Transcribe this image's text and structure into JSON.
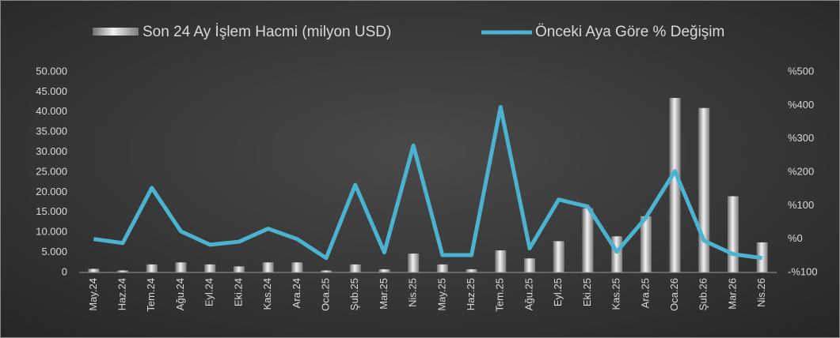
{
  "chart_data": {
    "type": "combo",
    "categories": [
      "May.24",
      "Haz.24",
      "Tem.24",
      "Ağu.24",
      "Eyl.24",
      "Eki.24",
      "Kas.24",
      "Ara.24",
      "Oca.25",
      "Şub.25",
      "Mar.25",
      "Nis.25",
      "May.25",
      "Haz.25",
      "Tem.25",
      "Ağu.25",
      "Eyl.25",
      "Eki.25",
      "Kas.25",
      "Ara.25",
      "Oca.26",
      "Şub.26",
      "Mar.26",
      "Nis.26"
    ],
    "series": [
      {
        "name": "Son 24 Ay İşlem Hacmi (milyon USD)",
        "type": "bar",
        "color": "#c8c8c8",
        "values": [
          900,
          500,
          2000,
          2500,
          2000,
          1500,
          2500,
          2500,
          500,
          2000,
          800,
          4700,
          2000,
          800,
          5500,
          3500,
          7800,
          16000,
          9000,
          14000,
          43500,
          41000,
          19000,
          7500
        ]
      },
      {
        "name": "Önceki Aya Göre % Değişim",
        "type": "line",
        "axis": "y2",
        "color": "#4bb3cf",
        "values": [
          0,
          -12,
          153,
          23,
          -17,
          -8,
          31,
          0,
          -57,
          162,
          -40,
          280,
          -48,
          -48,
          395,
          -28,
          118,
          97,
          -38,
          64,
          203,
          -5,
          -45,
          -57
        ]
      }
    ],
    "ylim": [
      0,
      50000
    ],
    "yticks": [
      0,
      {
        "value": 5000,
        "label": "5.000"
      },
      {
        "value": 10000,
        "label": "10.000"
      },
      {
        "value": 15000,
        "label": "15.000"
      },
      {
        "value": 20000,
        "label": "20.000"
      },
      {
        "value": 25000,
        "label": "25.000"
      },
      {
        "value": 30000,
        "label": "30.000"
      },
      {
        "value": 35000,
        "label": "35.000"
      },
      {
        "value": 40000,
        "label": "40.000"
      },
      {
        "value": 45000,
        "label": "45.000"
      },
      {
        "value": 50000,
        "label": "50.000"
      }
    ],
    "y2lim": [
      -100,
      500
    ],
    "y2ticks": [
      {
        "value": -100,
        "label": "-%100"
      },
      {
        "value": 0,
        "label": "%0"
      },
      {
        "value": 100,
        "label": "%100"
      },
      {
        "value": 200,
        "label": "%200"
      },
      {
        "value": 300,
        "label": "%300"
      },
      {
        "value": 400,
        "label": "%400"
      },
      {
        "value": 500,
        "label": "%500"
      }
    ],
    "legend": "top"
  }
}
